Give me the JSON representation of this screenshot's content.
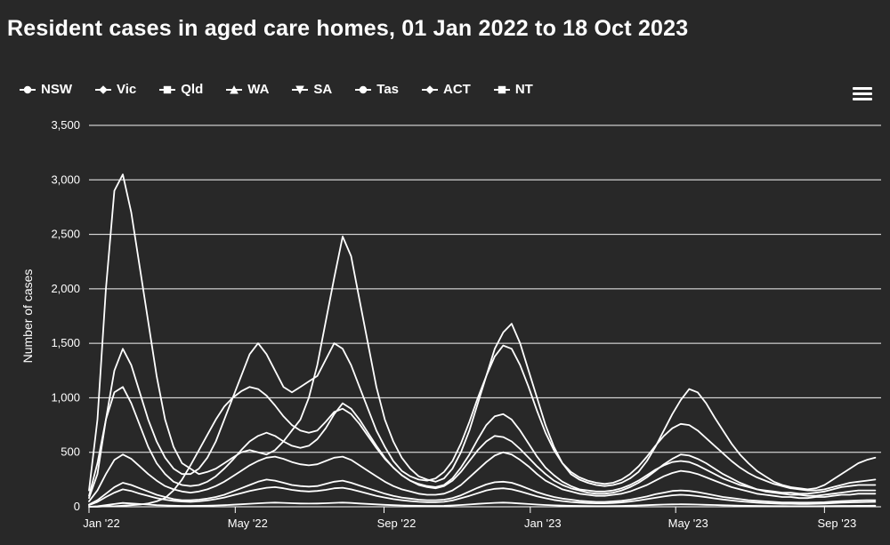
{
  "title": "Resident cases in aged care homes, 01 Jan 2022 to 18 Oct 2023",
  "colors": {
    "background": "#282828",
    "text": "#ffffff",
    "series_line": "#ffffff",
    "grid_line": "#ffffff",
    "axis_line": "#ffffff"
  },
  "icons": {
    "menu": "hamburger-icon"
  },
  "chart_data": {
    "type": "line",
    "title": "Resident cases in aged care homes, 01 Jan 2022 to 18 Oct 2023",
    "xlabel": "",
    "ylabel": "Number of cases",
    "ylim": [
      0,
      3500
    ],
    "y_ticks": [
      0,
      500,
      1000,
      1500,
      2000,
      2500,
      3000,
      3500
    ],
    "x_unit": "weeks since 01 Jan 2022",
    "x_max_week": 93.7,
    "x_ticks": [
      {
        "week": 0,
        "label": "Jan '22"
      },
      {
        "week": 17.3,
        "label": "May '22"
      },
      {
        "week": 34.9,
        "label": "Sep '22"
      },
      {
        "week": 52.2,
        "label": "Jan '23"
      },
      {
        "week": 69.4,
        "label": "May '23"
      },
      {
        "week": 87.0,
        "label": "Sep '23"
      }
    ],
    "grid": true,
    "legend_position": "top",
    "series": [
      {
        "name": "NSW",
        "marker": "circle",
        "values": [
          150,
          800,
          2000,
          2900,
          3050,
          2700,
          2200,
          1700,
          1200,
          800,
          550,
          400,
          350,
          300,
          320,
          350,
          400,
          450,
          500,
          520,
          500,
          480,
          520,
          600,
          700,
          800,
          1000,
          1300,
          1700,
          2100,
          2480,
          2300,
          1900,
          1500,
          1100,
          800,
          600,
          450,
          350,
          280,
          250,
          230,
          260,
          350,
          500,
          700,
          950,
          1200,
          1450,
          1600,
          1680,
          1500,
          1250,
          1000,
          750,
          550,
          400,
          300,
          250,
          220,
          200,
          190,
          200,
          220,
          260,
          320,
          420,
          550,
          700,
          850,
          980,
          1080,
          1050,
          950,
          820,
          700,
          580,
          480,
          400,
          330,
          280,
          230,
          200,
          180,
          170,
          160,
          170,
          200,
          250,
          300,
          350,
          400,
          430,
          450
        ]
      },
      {
        "name": "Vic",
        "marker": "diamond",
        "values": [
          80,
          300,
          800,
          1250,
          1450,
          1300,
          1050,
          800,
          600,
          450,
          350,
          300,
          300,
          350,
          450,
          600,
          800,
          1000,
          1200,
          1400,
          1500,
          1400,
          1250,
          1100,
          1050,
          1100,
          1150,
          1200,
          1350,
          1500,
          1450,
          1300,
          1100,
          900,
          700,
          550,
          420,
          330,
          280,
          250,
          240,
          260,
          320,
          420,
          580,
          780,
          1000,
          1200,
          1380,
          1480,
          1450,
          1300,
          1100,
          880,
          680,
          520,
          400,
          320,
          270,
          240,
          220,
          210,
          220,
          250,
          300,
          370,
          460,
          560,
          650,
          720,
          760,
          750,
          700,
          630,
          560,
          490,
          420,
          360,
          310,
          270,
          240,
          210,
          190,
          170,
          160,
          150,
          150,
          160,
          180,
          200,
          220,
          230,
          240,
          250
        ]
      },
      {
        "name": "Qld",
        "marker": "square",
        "values": [
          100,
          400,
          800,
          1050,
          1100,
          950,
          750,
          550,
          400,
          300,
          230,
          200,
          190,
          200,
          230,
          280,
          350,
          430,
          520,
          600,
          650,
          680,
          650,
          600,
          560,
          540,
          560,
          620,
          720,
          850,
          950,
          900,
          800,
          680,
          560,
          450,
          360,
          290,
          240,
          210,
          190,
          180,
          200,
          260,
          360,
          480,
          620,
          750,
          830,
          850,
          800,
          700,
          580,
          460,
          360,
          290,
          230,
          190,
          160,
          150,
          140,
          140,
          150,
          170,
          200,
          240,
          290,
          340,
          380,
          410,
          420,
          410,
          380,
          340,
          300,
          260,
          230,
          200,
          180,
          160,
          150,
          140,
          130,
          130,
          120,
          120,
          130,
          140,
          160,
          180,
          190,
          200,
          200,
          200
        ]
      },
      {
        "name": "WA",
        "marker": "triangle",
        "values": [
          0,
          0,
          5,
          5,
          10,
          15,
          20,
          30,
          50,
          80,
          150,
          250,
          380,
          520,
          660,
          800,
          920,
          1000,
          1060,
          1100,
          1080,
          1020,
          930,
          830,
          750,
          700,
          680,
          700,
          780,
          870,
          900,
          850,
          760,
          650,
          540,
          440,
          360,
          290,
          240,
          200,
          180,
          170,
          190,
          240,
          320,
          420,
          520,
          600,
          650,
          640,
          600,
          530,
          450,
          370,
          300,
          240,
          200,
          170,
          150,
          130,
          120,
          120,
          130,
          150,
          180,
          220,
          270,
          330,
          390,
          440,
          480,
          470,
          440,
          400,
          350,
          300,
          260,
          220,
          190,
          160,
          140,
          130,
          120,
          110,
          110,
          100,
          100,
          110,
          120,
          130,
          140,
          150,
          150,
          150
        ]
      },
      {
        "name": "SA",
        "marker": "triangle-down",
        "values": [
          50,
          150,
          300,
          430,
          480,
          440,
          370,
          300,
          240,
          190,
          160,
          140,
          130,
          140,
          160,
          190,
          230,
          280,
          330,
          380,
          420,
          450,
          460,
          440,
          410,
          390,
          380,
          390,
          420,
          450,
          460,
          430,
          380,
          330,
          280,
          230,
          190,
          160,
          140,
          120,
          110,
          110,
          120,
          150,
          200,
          270,
          340,
          410,
          470,
          500,
          480,
          430,
          370,
          300,
          240,
          200,
          160,
          140,
          120,
          110,
          100,
          100,
          110,
          120,
          140,
          170,
          200,
          240,
          280,
          310,
          330,
          320,
          300,
          270,
          240,
          210,
          180,
          160,
          140,
          120,
          110,
          100,
          90,
          90,
          80,
          80,
          90,
          90,
          100,
          110,
          110,
          120,
          120,
          120
        ]
      },
      {
        "name": "Tas",
        "marker": "circle",
        "values": [
          20,
          60,
          120,
          180,
          220,
          200,
          170,
          140,
          110,
          90,
          70,
          60,
          60,
          65,
          75,
          90,
          110,
          140,
          170,
          200,
          230,
          250,
          240,
          220,
          200,
          190,
          185,
          190,
          210,
          230,
          240,
          220,
          195,
          170,
          145,
          120,
          100,
          85,
          75,
          65,
          60,
          60,
          65,
          80,
          105,
          140,
          175,
          205,
          225,
          230,
          220,
          195,
          165,
          135,
          110,
          90,
          75,
          65,
          55,
          50,
          45,
          45,
          50,
          55,
          65,
          80,
          95,
          115,
          130,
          145,
          150,
          145,
          135,
          120,
          105,
          90,
          80,
          70,
          60,
          55,
          50,
          45,
          40,
          40,
          38,
          38,
          40,
          42,
          48,
          52,
          55,
          58,
          60,
          60
        ]
      },
      {
        "name": "ACT",
        "marker": "diamond",
        "values": [
          15,
          45,
          90,
          130,
          160,
          145,
          120,
          100,
          80,
          65,
          55,
          48,
          45,
          50,
          58,
          70,
          85,
          105,
          125,
          145,
          160,
          175,
          180,
          170,
          155,
          145,
          140,
          145,
          155,
          170,
          175,
          160,
          140,
          120,
          100,
          85,
          70,
          60,
          52,
          46,
          42,
          42,
          46,
          58,
          78,
          100,
          125,
          150,
          165,
          170,
          160,
          140,
          118,
          96,
          78,
          63,
          52,
          44,
          38,
          34,
          32,
          32,
          35,
          40,
          48,
          58,
          70,
          82,
          95,
          105,
          110,
          106,
          98,
          88,
          77,
          67,
          58,
          50,
          44,
          38,
          34,
          31,
          28,
          28,
          26,
          26,
          28,
          30,
          34,
          38,
          40,
          42,
          44,
          45
        ]
      },
      {
        "name": "NT",
        "marker": "square",
        "values": [
          0,
          5,
          15,
          25,
          35,
          30,
          25,
          20,
          15,
          12,
          10,
          8,
          8,
          9,
          10,
          12,
          15,
          19,
          23,
          28,
          32,
          36,
          38,
          36,
          33,
          30,
          29,
          30,
          33,
          36,
          38,
          35,
          30,
          26,
          22,
          18,
          15,
          12,
          10,
          9,
          8,
          8,
          9,
          12,
          16,
          21,
          27,
          32,
          36,
          38,
          35,
          30,
          25,
          20,
          16,
          13,
          11,
          9,
          8,
          7,
          6,
          6,
          7,
          8,
          10,
          12,
          15,
          18,
          20,
          22,
          23,
          22,
          20,
          18,
          16,
          14,
          12,
          10,
          9,
          8,
          7,
          6,
          6,
          5,
          5,
          5,
          5,
          6,
          7,
          8,
          8,
          9,
          9,
          10
        ]
      }
    ]
  }
}
